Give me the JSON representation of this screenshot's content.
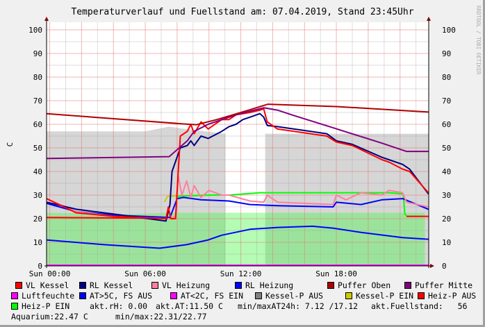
{
  "chart_data": {
    "type": "line",
    "title": "Temperaturverlauf und Fuellstand am: 07.04.2019, Stand 23:45Uhr",
    "ylabel": "C",
    "watermark": "RRDTOOL / TOBI OETIKER",
    "ylim": [
      0,
      100
    ],
    "yticks": [
      0,
      10,
      20,
      30,
      40,
      50,
      60,
      70,
      80,
      90,
      100
    ],
    "xlim_hours": [
      -0.2,
      23.8
    ],
    "xticks": [
      {
        "h": 0,
        "label": "Sun 00:00"
      },
      {
        "h": 6,
        "label": "Sun 06:00"
      },
      {
        "h": 12,
        "label": "Sun 12:00"
      },
      {
        "h": 18,
        "label": "Sun 18:00"
      }
    ],
    "grid": true,
    "areas": [
      {
        "name": "Kessel-P AUS",
        "color": "#d6d6d6",
        "segments": [
          [
            [
              -0.2,
              57
            ],
            [
              2,
              57
            ],
            [
              6,
              57
            ],
            [
              7.5,
              59
            ],
            [
              8.5,
              58
            ],
            [
              11.04,
              56
            ]
          ],
          [
            [
              13.53,
              56
            ],
            [
              18,
              56
            ],
            [
              23.78,
              56
            ]
          ]
        ]
      },
      {
        "name": "Fuellstand",
        "color": "#9be39b",
        "segments": [
          [
            [
              -0.2,
              22.5
            ],
            [
              5,
              22
            ],
            [
              7.5,
              22.5
            ],
            [
              11.04,
              22.5
            ]
          ],
          [
            [
              13.53,
              22.5
            ],
            [
              23.56,
              22.5
            ]
          ]
        ]
      },
      {
        "name": "Fuellstand-hell",
        "color": "#b4fbb4",
        "segments": [
          [
            [
              11.04,
              22.5
            ],
            [
              13.53,
              22.5
            ]
          ]
        ]
      }
    ],
    "series": [
      {
        "name": "Luftfeuchte",
        "color": "#ff00ff",
        "points": [
          [
            -0.2,
            0.3
          ],
          [
            23.78,
            0.3
          ]
        ]
      },
      {
        "name": "AT",
        "color": "#0000ff",
        "points": [
          [
            -0.2,
            11
          ],
          [
            3.4,
            9
          ],
          [
            6.9,
            7.5
          ],
          [
            8.6,
            9
          ],
          [
            9.95,
            11
          ],
          [
            10.8,
            13
          ],
          [
            12.57,
            15.5
          ],
          [
            14.3,
            16.3
          ],
          [
            16.5,
            16.8
          ],
          [
            17.8,
            16
          ],
          [
            19.55,
            14.2
          ],
          [
            22.16,
            12
          ],
          [
            23.78,
            11.3
          ]
        ]
      },
      {
        "name": "Heiz-P AUS",
        "color": "#ff0000",
        "points": [
          [
            -0.2,
            20.5
          ],
          [
            7.2,
            20.2
          ],
          [
            7.55,
            20.5
          ]
        ]
      },
      {
        "name": "Heiz-P AUS end",
        "color": "#ff0000",
        "points": [
          [
            22.4,
            21
          ],
          [
            23.78,
            21
          ]
        ]
      },
      {
        "name": "Kessel-P EIN",
        "color": "#cccc00",
        "points": [
          [
            7.2,
            27
          ],
          [
            7.4,
            29.5
          ],
          [
            9.5,
            30
          ],
          [
            11.26,
            30
          ]
        ]
      },
      {
        "name": "Heiz-P EIN",
        "color": "#00ff00",
        "points": [
          [
            7.9,
            21
          ],
          [
            8.0,
            29.5
          ],
          [
            10,
            30
          ],
          [
            11.26,
            30
          ],
          [
            13.2,
            31
          ],
          [
            18,
            31
          ],
          [
            21.3,
            31
          ],
          [
            22.2,
            30.5
          ],
          [
            22.3,
            22
          ],
          [
            22.4,
            21.3
          ]
        ]
      },
      {
        "name": "RL Heizung",
        "color": "#0000ff",
        "points": [
          [
            -0.2,
            26.5
          ],
          [
            1.66,
            23
          ],
          [
            4,
            21.5
          ],
          [
            7.55,
            20.5
          ],
          [
            8.0,
            28.5
          ],
          [
            8.4,
            29
          ],
          [
            9.5,
            28
          ],
          [
            11.26,
            27.5
          ],
          [
            12.57,
            26
          ],
          [
            14.3,
            25.5
          ],
          [
            17.8,
            25
          ],
          [
            18,
            27
          ],
          [
            19.55,
            26
          ],
          [
            20.86,
            28
          ],
          [
            22.16,
            28.5
          ],
          [
            23.78,
            24
          ]
        ]
      },
      {
        "name": "VL Heizung",
        "color": "#ff7fa0",
        "points": [
          [
            -0.2,
            28.5
          ],
          [
            1.66,
            23
          ],
          [
            4,
            21
          ],
          [
            7.55,
            20
          ],
          [
            7.9,
            21
          ],
          [
            8.07,
            38
          ],
          [
            8.3,
            30
          ],
          [
            8.6,
            36
          ],
          [
            8.86,
            29
          ],
          [
            9.07,
            34
          ],
          [
            9.5,
            29
          ],
          [
            10,
            32
          ],
          [
            10.8,
            30
          ],
          [
            11.26,
            30
          ],
          [
            12.57,
            27.5
          ],
          [
            13.44,
            27
          ],
          [
            13.66,
            30
          ],
          [
            14.3,
            27
          ],
          [
            17.8,
            26
          ],
          [
            18,
            30
          ],
          [
            18.6,
            28
          ],
          [
            19.55,
            31
          ],
          [
            20.86,
            30
          ],
          [
            21.3,
            32
          ],
          [
            22.16,
            31
          ],
          [
            22.4,
            27
          ],
          [
            23.78,
            25
          ]
        ]
      },
      {
        "name": "RL Kessel",
        "color": "#000080",
        "points": [
          [
            -0.2,
            27
          ],
          [
            1.66,
            24
          ],
          [
            4,
            22
          ],
          [
            7.3,
            19
          ],
          [
            7.55,
            26
          ],
          [
            7.68,
            40
          ],
          [
            8.2,
            50
          ],
          [
            8.64,
            51
          ],
          [
            8.86,
            53
          ],
          [
            9.07,
            51
          ],
          [
            9.5,
            55
          ],
          [
            9.95,
            54
          ],
          [
            10.8,
            57
          ],
          [
            11.26,
            59
          ],
          [
            11.7,
            60
          ],
          [
            12.13,
            62
          ],
          [
            12.57,
            63
          ],
          [
            13.2,
            64.5
          ],
          [
            13.44,
            63
          ],
          [
            13.66,
            59.5
          ],
          [
            14.3,
            59
          ],
          [
            17.4,
            56
          ],
          [
            18,
            53
          ],
          [
            19,
            51.5
          ],
          [
            20.86,
            46
          ],
          [
            21.3,
            45
          ],
          [
            22.16,
            43
          ],
          [
            22.6,
            41
          ],
          [
            23.78,
            30.5
          ]
        ]
      },
      {
        "name": "VL Kessel",
        "color": "#ff0000",
        "points": [
          [
            -0.2,
            28.5
          ],
          [
            1.66,
            22.5
          ],
          [
            4,
            21
          ],
          [
            7.3,
            20
          ],
          [
            7.45,
            25
          ],
          [
            7.6,
            20
          ],
          [
            7.9,
            20
          ],
          [
            8.2,
            55
          ],
          [
            8.64,
            57
          ],
          [
            8.86,
            60
          ],
          [
            9.07,
            56
          ],
          [
            9.5,
            61
          ],
          [
            9.95,
            58
          ],
          [
            10.8,
            62
          ],
          [
            11.26,
            62
          ],
          [
            11.7,
            64
          ],
          [
            12.57,
            65
          ],
          [
            13.2,
            66
          ],
          [
            13.44,
            66.5
          ],
          [
            13.66,
            61
          ],
          [
            14.3,
            58
          ],
          [
            17.4,
            55
          ],
          [
            18,
            52.5
          ],
          [
            19,
            51
          ],
          [
            20.86,
            45
          ],
          [
            21.3,
            44
          ],
          [
            22.16,
            41
          ],
          [
            22.6,
            40
          ],
          [
            23.78,
            31
          ]
        ]
      },
      {
        "name": "Puffer Mitte",
        "color": "#800080",
        "points": [
          [
            -0.2,
            45.5
          ],
          [
            7.5,
            46.3
          ],
          [
            8.64,
            53
          ],
          [
            9.07,
            57
          ],
          [
            9.95,
            60
          ],
          [
            11.7,
            64
          ],
          [
            13.44,
            67
          ],
          [
            14.3,
            66
          ],
          [
            15.2,
            64
          ],
          [
            17.8,
            58.5
          ],
          [
            20.86,
            52
          ],
          [
            22.4,
            48.5
          ],
          [
            23.78,
            48.5
          ]
        ]
      },
      {
        "name": "Puffer Oben",
        "color": "#b00000",
        "points": [
          [
            -0.2,
            64.5
          ],
          [
            8.3,
            60.2
          ],
          [
            9.2,
            59.8
          ],
          [
            10.5,
            62
          ],
          [
            12.5,
            66
          ],
          [
            13.7,
            68.5
          ],
          [
            18,
            67.5
          ],
          [
            23.78,
            65.2
          ]
        ]
      }
    ]
  },
  "legend": {
    "items": [
      {
        "label": "VL Kessel",
        "color": "#ff0000"
      },
      {
        "label": "RL Kessel",
        "color": "#000080"
      },
      {
        "label": "VL Heizung",
        "color": "#ff7fa0"
      },
      {
        "label": "RL Heizung",
        "color": "#0000ff"
      },
      {
        "label": "Puffer Oben",
        "color": "#b00000"
      },
      {
        "label": "Puffer Mitte",
        "color": "#800080"
      },
      {
        "label": "Luftfeuchte",
        "color": "#ff00ff"
      },
      {
        "label": "AT>5C, FS AUS",
        "color": "#0000ff"
      },
      {
        "label": "AT<2C, FS EIN",
        "color": "#ff00ff"
      },
      {
        "label": "Kessel-P AUS",
        "color": "#808080"
      },
      {
        "label": "Kessel-P EIN",
        "color": "#cccc00"
      },
      {
        "label": "Heiz-P AUS",
        "color": "#ff0000"
      },
      {
        "label": "Heiz-P EIN",
        "color": "#00ff00"
      }
    ],
    "stats": {
      "rh": "akt.rH: 0.00",
      "at": "akt.AT:11.50 C",
      "minmax_at": "min/maxAT24h: 7.12 /17.12",
      "fuellstand": "akt.Fuellstand:   56",
      "aquarium": "Aquarium:22.47 C",
      "aquarium_minmax": "min/max:22.31/22.77"
    }
  }
}
